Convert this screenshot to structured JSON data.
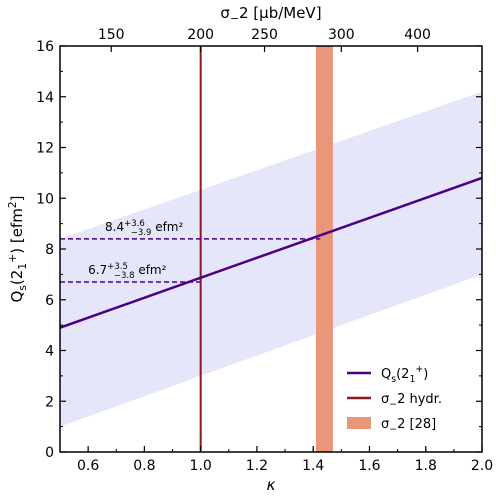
{
  "chart_data": {
    "type": "line",
    "xlabel": "κ",
    "ylabel": "Q_s(2_1^+) [efm^2]",
    "top_xlabel": "σ_−2 [μb/MeV]",
    "xlim": [
      0.5,
      2.0
    ],
    "ylim": [
      0,
      16
    ],
    "x_ticks": [
      0.6,
      0.8,
      1.0,
      1.2,
      1.4,
      1.6,
      1.8,
      2.0
    ],
    "x_tick_labels": [
      "0.6",
      "0.8",
      "1.0",
      "1.2",
      "1.4",
      "1.6",
      "1.8",
      "2.0"
    ],
    "y_ticks": [
      0,
      2,
      4,
      6,
      8,
      10,
      12,
      14,
      16
    ],
    "y_tick_labels": [
      "0",
      "2",
      "4",
      "6",
      "8",
      "10",
      "12",
      "14",
      "16"
    ],
    "top_ticks_kappa": [
      0.682,
      1.0,
      1.227,
      1.5,
      1.771
    ],
    "top_tick_labels": [
      "150",
      "200",
      "250",
      "300",
      "400"
    ],
    "grid": false,
    "legend_position": "bottom-right",
    "colors": {
      "line": "#4b0082",
      "band": "#e6e6fa",
      "hydro": "#8b1a1a",
      "exp_band": "#e9967a"
    },
    "series": [
      {
        "name": "Q_s(2_1^+)",
        "x": [
          0.5,
          2.0
        ],
        "y": [
          4.9,
          10.8
        ]
      }
    ],
    "uncertainty_band": {
      "x": [
        0.5,
        2.0
      ],
      "lower": [
        1.0,
        7.0
      ],
      "upper": [
        8.4,
        14.2
      ]
    },
    "vertical_line": {
      "name": "σ_−2 hydr.",
      "x": 1.0
    },
    "vertical_band": {
      "name": "σ_−2 [28]",
      "x_range": [
        1.41,
        1.47
      ]
    },
    "annotations": [
      {
        "text": "6.7",
        "sup": "+3.5",
        "sub": "−3.8",
        "unit": " efm²",
        "x": 1.0,
        "y": 6.7
      },
      {
        "text": "8.4",
        "sup": "+3.6",
        "sub": "−3.9",
        "unit": " efm²",
        "x": 1.425,
        "y": 8.4
      }
    ],
    "legend": [
      {
        "key": "line",
        "label": "Q_s(2_1^+)"
      },
      {
        "key": "hydro",
        "label": "σ_−2 hydr."
      },
      {
        "key": "exp_band",
        "label": "σ_−2 [28]"
      }
    ]
  }
}
